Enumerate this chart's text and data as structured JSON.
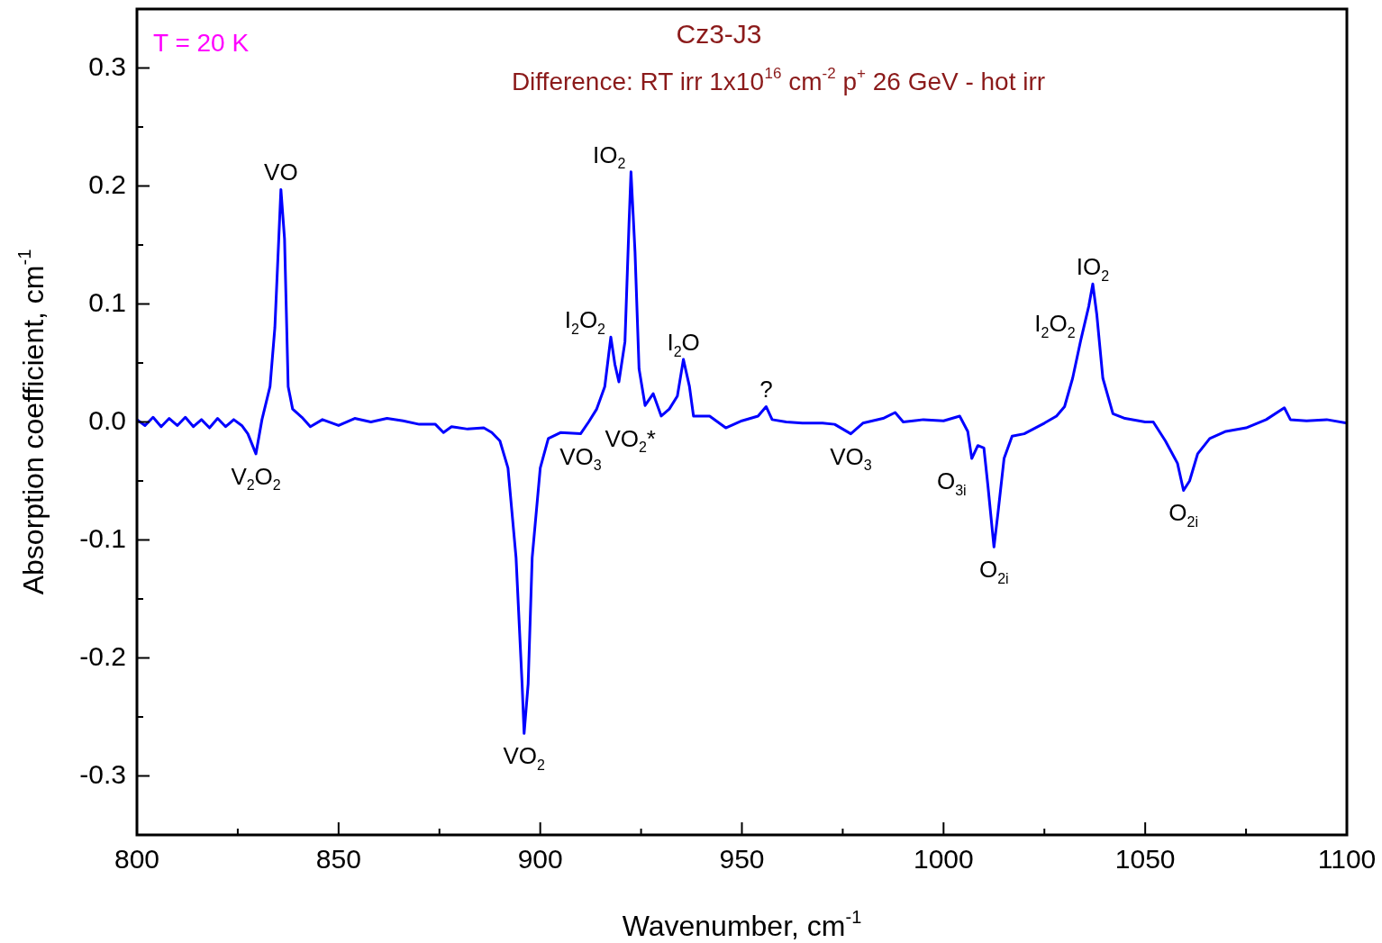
{
  "chart_data": {
    "type": "line",
    "title": "Cz3-J3",
    "subtitle": "Difference: RT irr 1x10$^{16}$ cm$^{-2}$ p$^{+}$ 26 GeV - hot irr",
    "xlabel": "Wavenumber, cm$^{-1}$",
    "ylabel": "Absorption coefficient, cm$^{-1}$",
    "annotations": [
      "T = 20 K",
      {
        "text": "VO",
        "x": 835.7,
        "y": 0.197
      },
      {
        "text": "V$_{2}$O$_{2}$",
        "x": 829.5,
        "y": -0.027
      },
      {
        "text": "VO$_{2}$",
        "x": 896,
        "y": -0.264
      },
      {
        "text": "VO$_{3}$",
        "x": 910,
        "y": -0.01
      },
      {
        "text": "I$_{2}$O$_{2}$",
        "x": 917.5,
        "y": 0.072
      },
      {
        "text": "IO$_{2}$",
        "x": 922.5,
        "y": 0.212
      },
      {
        "text": "I$_{2}$O",
        "x": 935.5,
        "y": 0.053
      },
      {
        "text": "VO$_{2}$*",
        "x": 930,
        "y": 0.005
      },
      {
        "text": "?",
        "x": 956,
        "y": 0.013
      },
      {
        "text": "VO$_{3}$",
        "x": 977,
        "y": -0.01
      },
      {
        "text": "O$_{3i}$",
        "x": 1007,
        "y": -0.031
      },
      {
        "text": "O$_{2i}$",
        "x": 1012.5,
        "y": -0.106
      },
      {
        "text": "I$_{2}$O$_{2}$",
        "x": 1034,
        "y": 0.069
      },
      {
        "text": "IO$_{2}$",
        "x": 1037,
        "y": 0.117
      },
      {
        "text": "O$_{2i}$",
        "x": 1059.5,
        "y": -0.058
      }
    ],
    "x": [
      800,
      802,
      804,
      806,
      808,
      810,
      812,
      814,
      816,
      818,
      820,
      822,
      824,
      826,
      827.5,
      829.5,
      831,
      833,
      834.2,
      835.7,
      836.6,
      837.5,
      838.6,
      840.9,
      843,
      846,
      850,
      854,
      858,
      862,
      866,
      870,
      874,
      876,
      878,
      882,
      886,
      888,
      890,
      892,
      894,
      895.5,
      896,
      897,
      898,
      900,
      902,
      905,
      910,
      912,
      914,
      916,
      917.5,
      918.5,
      919.5,
      921,
      922,
      922.5,
      923.5,
      924.5,
      926,
      928,
      930,
      932,
      934,
      935.5,
      937,
      938,
      942,
      946,
      950,
      954,
      956,
      957.5,
      961,
      965,
      970,
      973,
      977,
      980,
      985,
      988,
      990,
      995,
      1000,
      1004,
      1006,
      1007,
      1008.5,
      1010,
      1011,
      1012.5,
      1013.5,
      1015,
      1017,
      1020,
      1025,
      1028,
      1030,
      1032,
      1034,
      1036,
      1037,
      1038,
      1039.5,
      1042,
      1045,
      1050,
      1052,
      1055,
      1058,
      1059.5,
      1061,
      1063,
      1066,
      1070,
      1075,
      1080,
      1084.5,
      1086,
      1090,
      1095,
      1100
    ],
    "series": [
      {
        "color": "#0000ff",
        "values": [
          0.002,
          -0.003,
          0.004,
          -0.004,
          0.003,
          -0.003,
          0.004,
          -0.004,
          0.002,
          -0.005,
          0.003,
          -0.004,
          0.002,
          -0.003,
          -0.01,
          -0.027,
          0.002,
          0.03,
          0.08,
          0.197,
          0.155,
          0.03,
          0.011,
          0.004,
          -0.004,
          0.002,
          -0.003,
          0.003,
          0.0,
          0.003,
          0.001,
          -0.002,
          -0.002,
          -0.009,
          -0.004,
          -0.006,
          -0.005,
          -0.009,
          -0.016,
          -0.039,
          -0.115,
          -0.222,
          -0.264,
          -0.222,
          -0.115,
          -0.039,
          -0.014,
          -0.009,
          -0.01,
          0.0,
          0.011,
          0.03,
          0.072,
          0.049,
          0.034,
          0.068,
          0.167,
          0.212,
          0.144,
          0.045,
          0.014,
          0.024,
          0.005,
          0.011,
          0.022,
          0.053,
          0.03,
          0.005,
          0.005,
          -0.005,
          0.001,
          0.005,
          0.013,
          0.002,
          0.0,
          -0.001,
          -0.001,
          -0.002,
          -0.01,
          -0.001,
          0.003,
          0.008,
          0.0,
          0.002,
          0.001,
          0.005,
          -0.008,
          -0.031,
          -0.02,
          -0.022,
          -0.054,
          -0.106,
          -0.077,
          -0.031,
          -0.012,
          -0.01,
          -0.001,
          0.005,
          0.013,
          0.037,
          0.069,
          0.098,
          0.117,
          0.091,
          0.037,
          0.007,
          0.003,
          0.0,
          0.0,
          -0.016,
          -0.035,
          -0.058,
          -0.05,
          -0.027,
          -0.014,
          -0.008,
          -0.005,
          0.002,
          0.012,
          0.002,
          0.001,
          0.002,
          -0.001
        ]
      }
    ],
    "xlim": [
      800,
      1100
    ],
    "ylim": [
      -0.35,
      0.35
    ],
    "xticks": [
      800,
      {
        "value": 825,
        "label": null
      },
      850,
      {
        "value": 875,
        "label": null
      },
      900,
      {
        "value": 925,
        "label": null
      },
      950,
      {
        "value": 975,
        "label": null
      },
      1000,
      {
        "value": 1025,
        "label": null
      },
      1050,
      {
        "value": 1075,
        "label": null
      },
      1100
    ],
    "yticks": [
      -0.3,
      {
        "value": -0.25,
        "label": null
      },
      -0.2,
      {
        "value": -0.15,
        "label": null
      },
      -0.1,
      {
        "value": -0.05,
        "label": null
      },
      {
        "value": 0,
        "label": "0.0"
      },
      {
        "value": 0.05,
        "label": null
      },
      0.1,
      {
        "value": 0.15,
        "label": null
      },
      0.2,
      {
        "value": 0.25,
        "label": null
      },
      0.3
    ]
  }
}
